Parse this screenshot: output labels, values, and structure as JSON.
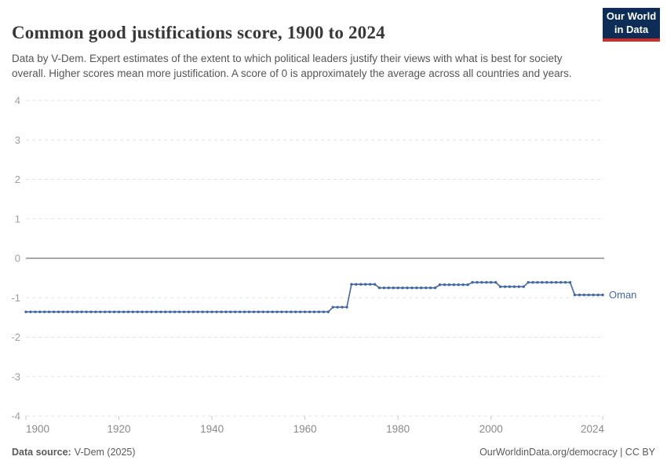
{
  "header": {
    "title": "Common good justifications score, 1900 to 2024",
    "subtitle": "Data by V-Dem. Expert estimates of the extent to which political leaders justify their views with what is best for society overall. Higher scores mean more justification. A score of 0 is approximately the average across all countries and years.",
    "logo": {
      "line1": "Our World",
      "line2": "in Data"
    }
  },
  "footer": {
    "source_label": "Data source:",
    "source_value": "V-Dem (2025)",
    "right_text": "OurWorldinData.org/democracy | CC BY"
  },
  "chart_data": {
    "type": "line",
    "title": "Common good justifications score, 1900 to 2024",
    "xlabel": "",
    "ylabel": "",
    "x_range": [
      1900,
      2024
    ],
    "ylim": [
      -4,
      4
    ],
    "yticks": [
      4,
      3,
      2,
      1,
      0,
      -1,
      -2,
      -3,
      -4
    ],
    "xticks": [
      1900,
      1920,
      1940,
      1960,
      1980,
      2000,
      2024
    ],
    "grid": "dashed-horizontal, solid zero line",
    "legend_position": "label at end of line",
    "marker": "circle-per-year",
    "series": [
      {
        "name": "Oman",
        "color": "#4268a3",
        "segments": [
          {
            "from": 1900,
            "to": 1965,
            "value": -1.36
          },
          {
            "from": 1966,
            "to": 1969,
            "value": -1.24
          },
          {
            "from": 1970,
            "to": 1975,
            "value": -0.66
          },
          {
            "from": 1976,
            "to": 1988,
            "value": -0.75
          },
          {
            "from": 1989,
            "to": 1995,
            "value": -0.67
          },
          {
            "from": 1996,
            "to": 2001,
            "value": -0.61
          },
          {
            "from": 2002,
            "to": 2007,
            "value": -0.72
          },
          {
            "from": 2008,
            "to": 2017,
            "value": -0.61
          },
          {
            "from": 2018,
            "to": 2024,
            "value": -0.93
          }
        ]
      }
    ],
    "colors": {
      "line": "#4268a3",
      "entity_label": "#4268a3",
      "gridline": "#e2e2e2",
      "zero_line": "#8c8c8c",
      "y_tick_text": "#9e9e9e",
      "x_tick_text": "#8a8a8a",
      "tick_mark": "#c8c8c8"
    }
  }
}
